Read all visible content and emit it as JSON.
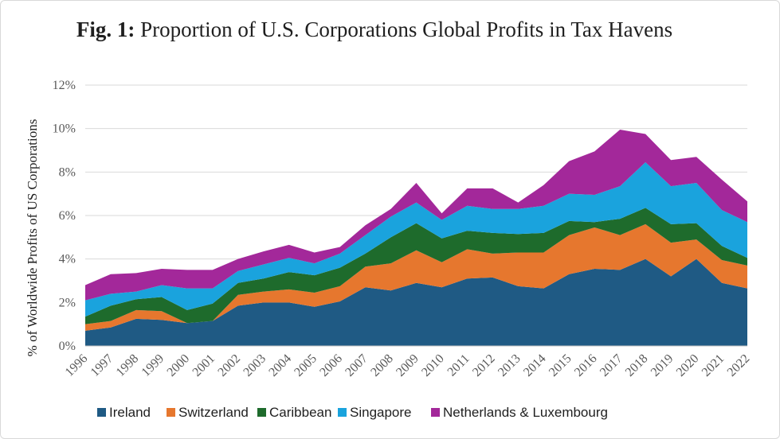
{
  "chart_data": {
    "type": "area",
    "stacked": true,
    "title_bold": "Fig. 1:",
    "title_rest": "Proportion of U.S. Corporations Global Profits in Tax Havens",
    "xlabel": "",
    "ylabel": "% of Worldwide Profits of US Corporations",
    "ylim": [
      0,
      12
    ],
    "yticks": [
      "0%",
      "2%",
      "4%",
      "6%",
      "8%",
      "10%",
      "12%"
    ],
    "ytick_values": [
      0,
      2,
      4,
      6,
      8,
      10,
      12
    ],
    "gridlines": true,
    "legend_position": "bottom",
    "categories": [
      "1996",
      "1997",
      "1998",
      "1999",
      "2000",
      "2001",
      "2002",
      "2003",
      "2004",
      "2005",
      "2006",
      "2007",
      "2008",
      "2009",
      "2010",
      "2011",
      "2012",
      "2013",
      "2014",
      "2015",
      "2016",
      "2017",
      "2018",
      "2019",
      "2020",
      "2021",
      "2022"
    ],
    "series": [
      {
        "name": "Ireland",
        "color": "#1f5a84",
        "values": [
          0.7,
          0.85,
          1.25,
          1.2,
          1.05,
          1.15,
          1.85,
          2.0,
          2.0,
          1.8,
          2.05,
          2.7,
          2.55,
          2.9,
          2.7,
          3.1,
          3.15,
          2.75,
          2.65,
          3.3,
          3.55,
          3.5,
          4.0,
          3.2,
          4.0,
          2.9,
          2.65
        ]
      },
      {
        "name": "Switzerland",
        "color": "#e6772e",
        "values": [
          0.3,
          0.3,
          0.4,
          0.4,
          0.0,
          0.0,
          0.5,
          0.5,
          0.6,
          0.65,
          0.7,
          0.95,
          1.25,
          1.5,
          1.15,
          1.35,
          1.1,
          1.55,
          1.65,
          1.8,
          1.9,
          1.6,
          1.6,
          1.55,
          0.9,
          1.05,
          1.05
        ]
      },
      {
        "name": "Caribbean",
        "color": "#1e6b2c",
        "values": [
          0.35,
          0.7,
          0.5,
          0.65,
          0.6,
          0.8,
          0.55,
          0.6,
          0.8,
          0.8,
          0.85,
          0.6,
          1.2,
          1.25,
          1.1,
          0.85,
          0.95,
          0.85,
          0.9,
          0.65,
          0.25,
          0.75,
          0.75,
          0.85,
          0.75,
          0.65,
          0.35
        ]
      },
      {
        "name": "Singapore",
        "color": "#1aa3dd",
        "values": [
          0.75,
          0.55,
          0.35,
          0.55,
          1.0,
          0.7,
          0.55,
          0.65,
          0.65,
          0.55,
          0.65,
          0.85,
          0.95,
          0.95,
          0.85,
          1.15,
          1.1,
          1.15,
          1.25,
          1.25,
          1.25,
          1.5,
          2.1,
          1.75,
          1.85,
          1.65,
          1.65
        ]
      },
      {
        "name": "Netherlands & Luxembourg",
        "color": "#a3289a",
        "values": [
          0.7,
          0.9,
          0.85,
          0.75,
          0.85,
          0.85,
          0.55,
          0.6,
          0.6,
          0.5,
          0.3,
          0.45,
          0.35,
          0.9,
          0.3,
          0.8,
          0.95,
          0.3,
          0.95,
          1.5,
          2.0,
          2.6,
          1.3,
          1.2,
          1.2,
          1.4,
          0.95
        ]
      }
    ]
  }
}
